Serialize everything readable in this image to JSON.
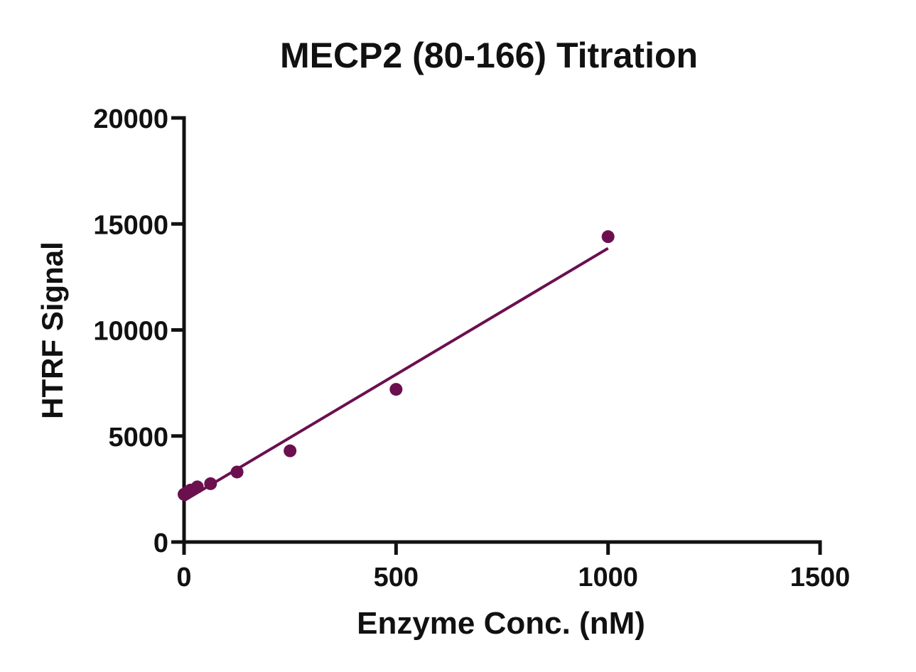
{
  "chart_data": {
    "type": "scatter",
    "title": "MECP2 (80-166) Titration",
    "xlabel": "Enzyme Conc. (nM)",
    "ylabel": "HTRF Signal",
    "xlim": [
      0,
      1500
    ],
    "ylim": [
      0,
      20000
    ],
    "x_ticks": [
      0,
      500,
      1000,
      1500
    ],
    "y_ticks": [
      0,
      5000,
      10000,
      15000,
      20000
    ],
    "x_tick_labels": [
      "0",
      "500",
      "1000",
      "1500"
    ],
    "y_tick_labels": [
      "0",
      "5000",
      "10000",
      "15000",
      "20000"
    ],
    "grid": false,
    "color": "#6b0f4f",
    "series": [
      {
        "points": [
          {
            "x": 0,
            "y": 2250
          },
          {
            "x": 7.8,
            "y": 2350
          },
          {
            "x": 15.6,
            "y": 2450
          },
          {
            "x": 31.3,
            "y": 2600
          },
          {
            "x": 62.5,
            "y": 2750
          },
          {
            "x": 125,
            "y": 3300
          },
          {
            "x": 250,
            "y": 4300
          },
          {
            "x": 500,
            "y": 7200
          },
          {
            "x": 1000,
            "y": 14400
          }
        ],
        "fit": {
          "type": "linear",
          "x_range": [
            0,
            1000
          ],
          "y_at_start": 1950,
          "y_at_end": 13850
        }
      }
    ]
  }
}
